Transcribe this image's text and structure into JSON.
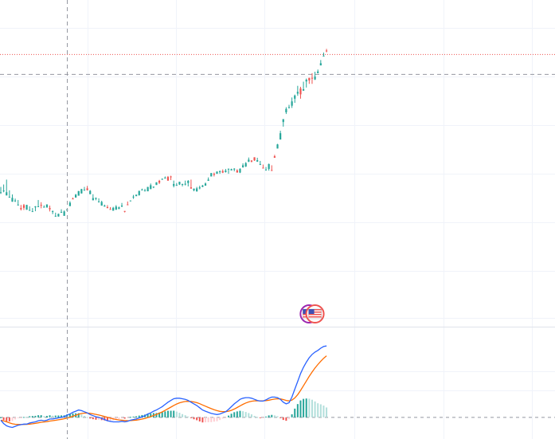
{
  "colors": {
    "up": "#26a69a",
    "down": "#ef5350",
    "macd_line": "#2962ff",
    "signal_line": "#ff6d00",
    "hist_up_strong": "#26a69a",
    "hist_up_weak": "#b2dfdb",
    "hist_down_strong": "#ef5350",
    "hist_down_weak": "#ffcdd2",
    "grid": "#f0f3fa",
    "crosshair": "#9598a1",
    "price_line": "#ef5350",
    "pane_divider": "#e0e3eb",
    "event_ring_a": "#9c27b0",
    "event_ring_b": "#ef5350"
  },
  "icons": {
    "events": [
      "flag-event-icon",
      "flag-event-icon"
    ]
  },
  "chart_data": [
    {
      "type": "candlestick",
      "title": "",
      "xlabel": "",
      "ylabel": "",
      "grid": true,
      "ylim": [
        0,
        1000
      ],
      "candles": [
        [
          340,
          333,
          362,
          340
        ],
        [
          346,
          340,
          372,
          347
        ],
        [
          327,
          340,
          392,
          340
        ],
        [
          318,
          330,
          348,
          321
        ],
        [
          301,
          317,
          331,
          317
        ],
        [
          305,
          300,
          314,
          306
        ],
        [
          286,
          293,
          308,
          289
        ],
        [
          275,
          265,
          288,
          270
        ],
        [
          287,
          267,
          292,
          276
        ],
        [
          268,
          280,
          288,
          288
        ],
        [
          264,
          267,
          282,
          267
        ],
        [
          262,
          271,
          275,
          262
        ],
        [
          278,
          262,
          283,
          282
        ],
        [
          279,
          287,
          308,
          282
        ],
        [
          288,
          274,
          299,
          286
        ],
        [
          279,
          281,
          286,
          280
        ],
        [
          277,
          279,
          290,
          290
        ],
        [
          275,
          261,
          285,
          270
        ],
        [
          260,
          250,
          265,
          262
        ],
        [
          243,
          239,
          256,
          243
        ],
        [
          240,
          248,
          252,
          251
        ],
        [
          256,
          263,
          270,
          259
        ],
        [
          243,
          252,
          265,
          261
        ],
        [
          265,
          269,
          273,
          269
        ],
        [
          283,
          286,
          303,
          297
        ],
        [
          314,
          312,
          318,
          313
        ],
        [
          318,
          318,
          333,
          330
        ],
        [
          326,
          331,
          345,
          345
        ],
        [
          335,
          336,
          354,
          353
        ],
        [
          348,
          347,
          362,
          350
        ],
        [
          356,
          347,
          366,
          349
        ],
        [
          332,
          348,
          349,
          346
        ],
        [
          307,
          314,
          332,
          316
        ],
        [
          313,
          307,
          318,
          317
        ],
        [
          302,
          298,
          315,
          302
        ],
        [
          285,
          287,
          305,
          300
        ],
        [
          281,
          284,
          289,
          285
        ],
        [
          279,
          274,
          287,
          275
        ],
        [
          271,
          270,
          279,
          270
        ],
        [
          264,
          267,
          280,
          276
        ],
        [
          268,
          271,
          287,
          281
        ],
        [
          271,
          275,
          281,
          278
        ],
        [
          281,
          279,
          296,
          285
        ],
        [
          263,
          257,
          263,
          262
        ],
        [
          290,
          300,
          302,
          289
        ],
        [
          303,
          306,
          304,
          306
        ],
        [
          319,
          313,
          329,
          322
        ],
        [
          324,
          326,
          321,
          330
        ],
        [
          328,
          326,
          347,
          345
        ],
        [
          351,
          348,
          355,
          351
        ],
        [
          345,
          348,
          354,
          347
        ],
        [
          344,
          347,
          362,
          362
        ],
        [
          353,
          366,
          376,
          369
        ],
        [
          361,
          357,
          357,
          363
        ],
        [
          370,
          370,
          374,
          381
        ],
        [
          387,
          374,
          391,
          379
        ],
        [
          394,
          391,
          397,
          395
        ],
        [
          400,
          396,
          405,
          400
        ],
        [
          403,
          387,
          407,
          388
        ],
        [
          405,
          390,
          408,
          403
        ],
        [
          366,
          360,
          388,
          374
        ],
        [
          370,
          367,
          378,
          370
        ],
        [
          372,
          370,
          379,
          383
        ],
        [
          371,
          364,
          375,
          374
        ],
        [
          373,
          368,
          388,
          375
        ],
        [
          378,
          364,
          390,
          387
        ],
        [
          360,
          355,
          392,
          355
        ],
        [
          348,
          344,
          355,
          355
        ],
        [
          344,
          342,
          362,
          356
        ],
        [
          356,
          352,
          367,
          360
        ],
        [
          362,
          361,
          370,
          368
        ],
        [
          367,
          374,
          380,
          376
        ],
        [
          387,
          389,
          401,
          392
        ],
        [
          405,
          410,
          416,
          419
        ],
        [
          416,
          405,
          421,
          412
        ],
        [
          416,
          420,
          426,
          425
        ],
        [
          426,
          416,
          430,
          426
        ],
        [
          427,
          419,
          434,
          421
        ],
        [
          423,
          421,
          436,
          429
        ],
        [
          434,
          416,
          435,
          437
        ],
        [
          430,
          432,
          437,
          435
        ],
        [
          436,
          426,
          439,
          437
        ],
        [
          430,
          424,
          435,
          421
        ],
        [
          421,
          419,
          439,
          436
        ],
        [
          443,
          441,
          459,
          451
        ],
        [
          446,
          444,
          464,
          460
        ],
        [
          466,
          464,
          483,
          474
        ],
        [
          471,
          463,
          469,
          466
        ],
        [
          484,
          469,
          474,
          471
        ],
        [
          466,
          465,
          482,
          472
        ],
        [
          456,
          452,
          469,
          456
        ],
        [
          441,
          442,
          454,
          440
        ],
        [
          431,
          430,
          444,
          433
        ],
        [
          436,
          429,
          458,
          456
        ],
        [
          431,
          444,
          451,
          429
        ],
        [
          488,
          486,
          494,
          482
        ],
        [
          520,
          521,
          539,
          537
        ],
        [
          557,
          558,
          593,
          583
        ],
        [
          629,
          610,
          630,
          641
        ],
        [
          669,
          662,
          690,
          683
        ],
        [
          688,
          685,
          700,
          690
        ],
        [
          696,
          687,
          730,
          714
        ],
        [
          725,
          708,
          742,
          738
        ],
        [
          746,
          737,
          778,
          753
        ],
        [
          767,
          725,
          774,
          743
        ],
        [
          758,
          774,
          795,
          764
        ],
        [
          796,
          771,
          808,
          803
        ],
        [
          811,
          786,
          793,
          800
        ],
        [
          811,
          786,
          830,
          808
        ],
        [
          804,
          802,
          836,
          816
        ],
        [
          830,
          841,
          845,
          837
        ],
        [
          862,
          877,
          884,
          871
        ],
        [
          899,
          905,
          915,
          902
        ],
        [
          923,
          916,
          930,
          922
        ]
      ],
      "price_line": 907,
      "horizontal_dashed_line": 825,
      "crosshair_x_index": 23,
      "events": [
        {
          "type": "economic",
          "index": 107
        },
        {
          "type": "economic",
          "index": 109
        }
      ]
    },
    {
      "type": "macd",
      "title": "",
      "grid": true,
      "ylim": [
        -3,
        14
      ],
      "zero_line": 0,
      "macd": [
        -0.5,
        -1.1,
        -1.5,
        -1.7,
        -1.8,
        -1.6,
        -1.4,
        -1.3,
        -1.2,
        -1.2,
        -1.0,
        -0.9,
        -0.8,
        -0.6,
        -0.5,
        -0.6,
        -0.5,
        -0.3,
        -0.3,
        -0.2,
        -0.1,
        0.0,
        0.1,
        0.4,
        0.6,
        0.9,
        1.1,
        1.3,
        1.2,
        1.0,
        0.8,
        0.5,
        0.3,
        0.1,
        0.0,
        -0.2,
        -0.4,
        -0.6,
        -0.7,
        -0.8,
        -0.8,
        -0.8,
        -0.7,
        -0.8,
        -0.7,
        -0.5,
        -0.4,
        -0.3,
        -0.1,
        0.1,
        0.3,
        0.6,
        0.8,
        1.1,
        1.3,
        1.6,
        1.9,
        2.3,
        2.7,
        3.0,
        3.3,
        3.4,
        3.4,
        3.3,
        3.2,
        3.0,
        2.7,
        2.4,
        2.1,
        1.7,
        1.3,
        1.1,
        0.9,
        0.7,
        0.6,
        0.5,
        0.6,
        0.8,
        1.0,
        1.4,
        1.9,
        2.4,
        2.8,
        3.2,
        3.4,
        3.5,
        3.5,
        3.4,
        3.2,
        3.0,
        2.9,
        2.9,
        3.1,
        3.4,
        3.6,
        3.6,
        3.5,
        3.2,
        2.7,
        2.4,
        2.6,
        3.6,
        5.0,
        6.4,
        7.8,
        8.9,
        9.8,
        10.6,
        11.2,
        11.6,
        11.9,
        12.3,
        12.6,
        12.7
      ]
    }
  ]
}
